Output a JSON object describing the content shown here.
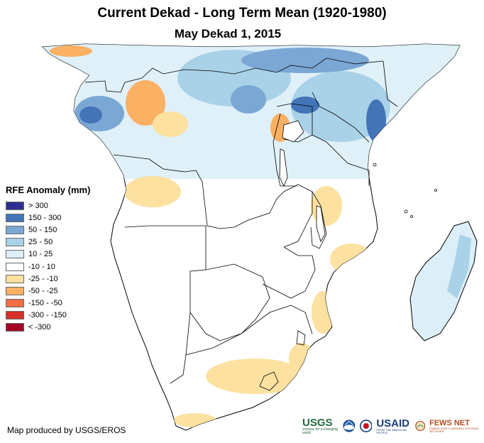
{
  "title": "Current Dekad - Long Term Mean (1920-1980)",
  "subtitle": "May Dekad 1, 2015",
  "legend": {
    "title": "RFE Anomaly (mm)",
    "items": [
      {
        "label": "> 300",
        "color": "#2c2f8f"
      },
      {
        "label": "150 - 300",
        "color": "#4374b8"
      },
      {
        "label": "50 - 150",
        "color": "#7ba7d4"
      },
      {
        "label": "25 - 50",
        "color": "#a9d2e8"
      },
      {
        "label": "10 - 25",
        "color": "#dceef7"
      },
      {
        "label": "-10 - 10",
        "color": "#ffffff"
      },
      {
        "label": "-25 - -10",
        "color": "#fde1a0"
      },
      {
        "label": "-50 - -25",
        "color": "#fbb063"
      },
      {
        "label": "-150 - -50",
        "color": "#f46d43"
      },
      {
        "label": "-300 - -150",
        "color": "#d73027"
      },
      {
        "label": "< -300",
        "color": "#a50026"
      }
    ]
  },
  "credit": "Map produced by USGS/EROS",
  "logos": {
    "usgs": "USGS",
    "usgs_tag": "science for a changing world",
    "usaid": "USAID",
    "usaid_tag": "FROM THE AMERICAN PEOPLE",
    "fews": "FEWS NET",
    "fews_tag": "FAMINE EARLY WARNING SYSTEMS NETWORK"
  }
}
